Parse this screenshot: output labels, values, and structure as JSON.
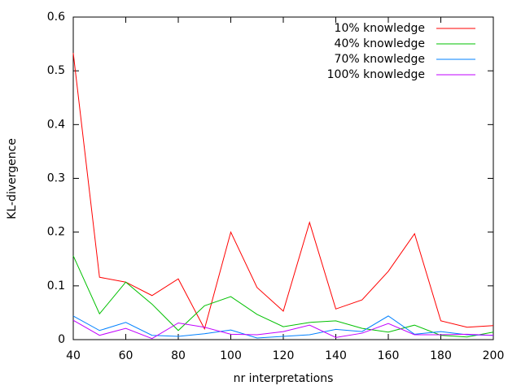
{
  "chart_data": {
    "type": "line",
    "x_label": "nr interpretations",
    "y_label": "KL-divergence",
    "x": [
      40,
      50,
      60,
      70,
      80,
      90,
      100,
      110,
      120,
      130,
      140,
      150,
      160,
      170,
      180,
      190,
      200
    ],
    "series": [
      {
        "name": "10% knowledge",
        "color": "#ff0000",
        "values": [
          0.533,
          0.116,
          0.107,
          0.082,
          0.113,
          0.02,
          0.2,
          0.097,
          0.053,
          0.218,
          0.057,
          0.074,
          0.127,
          0.197,
          0.035,
          0.023,
          0.026
        ]
      },
      {
        "name": "40% knowledge",
        "color": "#00c000",
        "values": [
          0.156,
          0.048,
          0.107,
          0.066,
          0.017,
          0.063,
          0.08,
          0.047,
          0.024,
          0.032,
          0.035,
          0.021,
          0.014,
          0.027,
          0.008,
          0.005,
          0.014
        ]
      },
      {
        "name": "70% knowledge",
        "color": "#0080ff",
        "values": [
          0.044,
          0.017,
          0.032,
          0.008,
          0.006,
          0.011,
          0.018,
          0.003,
          0.006,
          0.009,
          0.019,
          0.015,
          0.044,
          0.01,
          0.015,
          0.009,
          0.008
        ]
      },
      {
        "name": "100% knowledge",
        "color": "#c000ff",
        "values": [
          0.036,
          0.008,
          0.021,
          0.002,
          0.031,
          0.023,
          0.01,
          0.009,
          0.015,
          0.027,
          0.004,
          0.012,
          0.03,
          0.009,
          0.009,
          0.01,
          0.008
        ]
      }
    ],
    "xlim": [
      40,
      200
    ],
    "xticks": [
      40,
      60,
      80,
      100,
      120,
      140,
      160,
      180,
      200
    ],
    "ylim": [
      0,
      0.6
    ],
    "yticks": [
      0,
      0.1,
      0.2,
      0.3,
      0.4,
      0.5,
      0.6
    ],
    "legend": "top-right",
    "grid": false
  }
}
